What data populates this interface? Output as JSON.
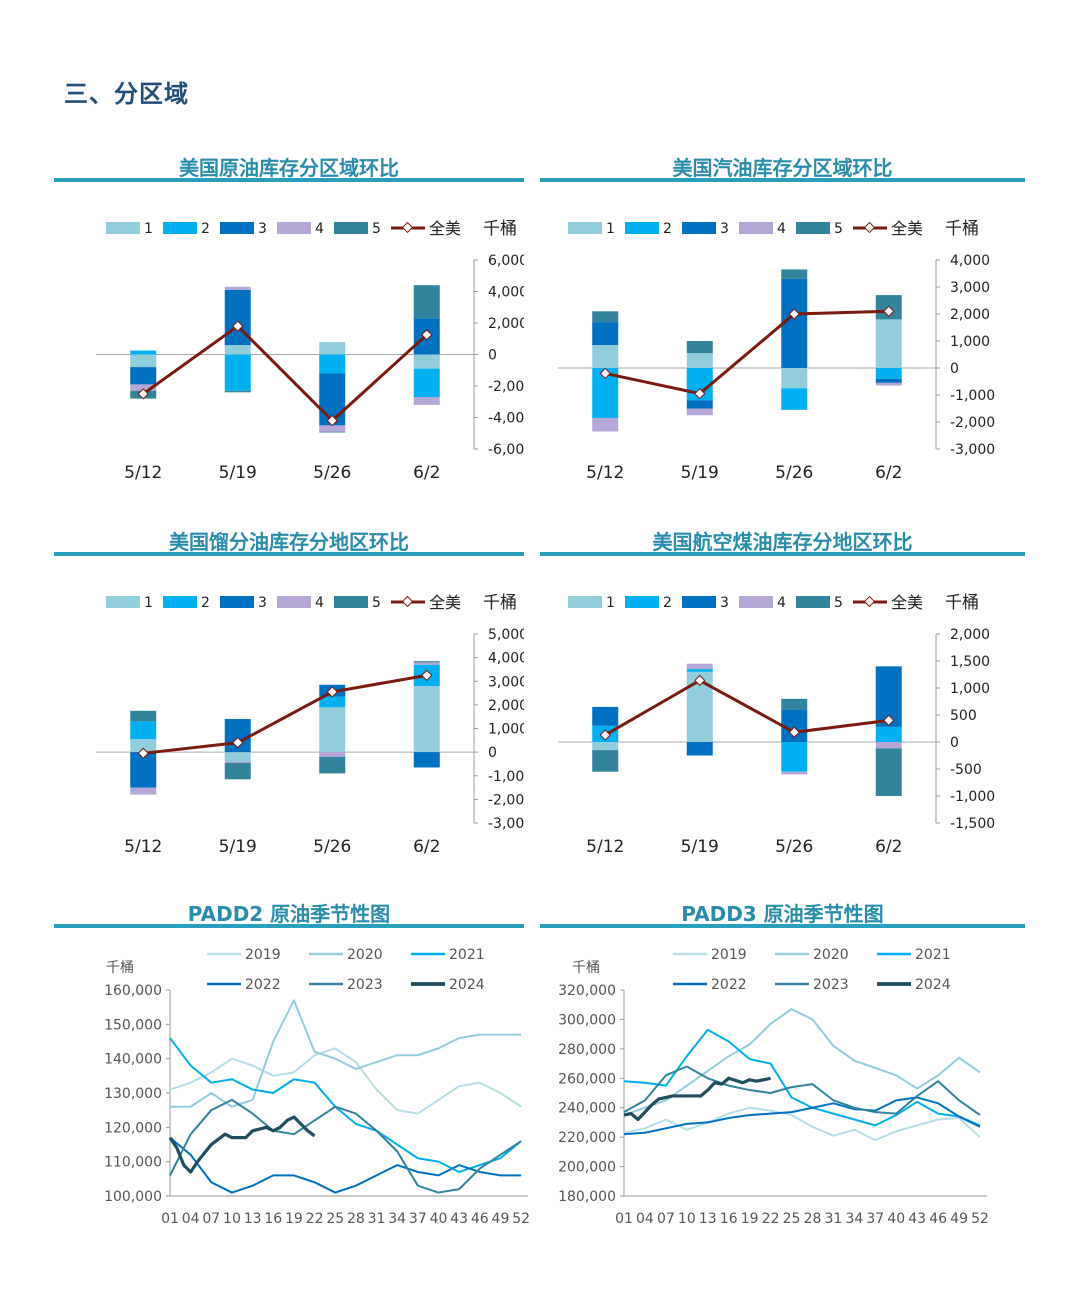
{
  "section": {
    "title": "三、分区域"
  },
  "colors": {
    "region_1": "#92cddc",
    "region_2": "#00b0f0",
    "region_3": "#0070c0",
    "region_4": "#b4a7d6",
    "region_5": "#31849b",
    "total_line": "#7b1a0e",
    "title": "#2a8cab",
    "rule": "#2a9fbc",
    "y2019": "#b7dde8",
    "y2020": "#92cddc",
    "y2021": "#00b0f0",
    "y2022": "#0070c0",
    "y2023": "#31849b",
    "y2024": "#1f4e5e"
  },
  "chart_data": [
    {
      "id": "crude",
      "type": "bar",
      "stacked": true,
      "title": "美国原油库存分区域环比",
      "unit": "千桶",
      "categories": [
        "5/12",
        "5/19",
        "5/26",
        "6/2"
      ],
      "ylim": [
        -6000,
        6000
      ],
      "yticks": [
        "6,000",
        "4,000",
        "2,000",
        "0",
        "-2,000",
        "-4,000",
        "-6,000"
      ],
      "ytick_values": [
        6000,
        4000,
        2000,
        0,
        -2000,
        -4000,
        -6000
      ],
      "series": [
        {
          "name": "1",
          "values": [
            -800,
            600,
            800,
            -900
          ]
        },
        {
          "name": "2",
          "values": [
            250,
            -2300,
            -1200,
            -1800
          ]
        },
        {
          "name": "3",
          "values": [
            -1100,
            3500,
            -3300,
            2300
          ]
        },
        {
          "name": "4",
          "values": [
            -400,
            200,
            -400,
            -500
          ]
        },
        {
          "name": "5",
          "values": [
            -500,
            -100,
            -50,
            2100
          ]
        }
      ],
      "line": {
        "name": "全美",
        "values": [
          -2500,
          1800,
          -4200,
          1250
        ]
      },
      "legend": "top"
    },
    {
      "id": "gasoline",
      "type": "bar",
      "stacked": true,
      "title": "美国汽油库存分区域环比",
      "unit": "千桶",
      "categories": [
        "5/12",
        "5/19",
        "5/26",
        "6/2"
      ],
      "ylim": [
        -3000,
        4000
      ],
      "yticks": [
        "4,000",
        "3,000",
        "2,000",
        "1,000",
        "0",
        "-1,000",
        "-2,000",
        "-3,000"
      ],
      "ytick_values": [
        4000,
        3000,
        2000,
        1000,
        0,
        -1000,
        -2000,
        -3000
      ],
      "series": [
        {
          "name": "1",
          "values": [
            850,
            550,
            -750,
            1800
          ]
        },
        {
          "name": "2",
          "values": [
            -1850,
            -1200,
            -800,
            -400
          ]
        },
        {
          "name": "3",
          "values": [
            850,
            -300,
            3300,
            -150
          ]
        },
        {
          "name": "4",
          "values": [
            -500,
            -250,
            0,
            -100
          ]
        },
        {
          "name": "5",
          "values": [
            400,
            450,
            350,
            900
          ]
        }
      ],
      "line": {
        "name": "全美",
        "values": [
          -200,
          -950,
          2000,
          2100
        ]
      },
      "legend": "top"
    },
    {
      "id": "distillate",
      "type": "bar",
      "stacked": true,
      "title": "美国馏分油库存分地区环比",
      "unit": "千桶",
      "categories": [
        "5/12",
        "5/19",
        "5/26",
        "6/2"
      ],
      "ylim": [
        -3000,
        5000
      ],
      "yticks": [
        "5,000",
        "4,000",
        "3,000",
        "2,000",
        "1,000",
        "0",
        "-1,000",
        "-2,000",
        "-3,000"
      ],
      "ytick_values": [
        5000,
        4000,
        3000,
        2000,
        1000,
        0,
        -1000,
        -2000,
        -3000
      ],
      "series": [
        {
          "name": "1",
          "values": [
            550,
            -400,
            1900,
            2800
          ]
        },
        {
          "name": "2",
          "values": [
            750,
            0,
            450,
            900
          ]
        },
        {
          "name": "3",
          "values": [
            -1500,
            1400,
            500,
            -650
          ]
        },
        {
          "name": "4",
          "values": [
            -300,
            -50,
            -200,
            100
          ]
        },
        {
          "name": "5",
          "values": [
            450,
            -700,
            -700,
            50
          ]
        }
      ],
      "line": {
        "name": "全美",
        "values": [
          -50,
          400,
          2550,
          3250
        ]
      },
      "legend": "top"
    },
    {
      "id": "jetfuel",
      "type": "bar",
      "stacked": true,
      "title": "美国航空煤油库存分地区环比",
      "unit": "千桶",
      "categories": [
        "5/12",
        "5/19",
        "5/26",
        "6/2"
      ],
      "ylim": [
        -1500,
        2000
      ],
      "yticks": [
        "2,000",
        "1,500",
        "1,000",
        "500",
        "0",
        "-500",
        "-1,000",
        "-1,500"
      ],
      "ytick_values": [
        2000,
        1500,
        1000,
        500,
        0,
        -500,
        -1000,
        -1500
      ],
      "series": [
        {
          "name": "1",
          "values": [
            -150,
            1300,
            0,
            0
          ]
        },
        {
          "name": "2",
          "values": [
            300,
            50,
            -550,
            280
          ]
        },
        {
          "name": "3",
          "values": [
            350,
            -250,
            600,
            1120
          ]
        },
        {
          "name": "4",
          "values": [
            0,
            100,
            -50,
            -120
          ]
        },
        {
          "name": "5",
          "values": [
            -400,
            0,
            200,
            -880
          ]
        }
      ],
      "line": {
        "name": "全美",
        "values": [
          130,
          1140,
          180,
          400
        ]
      },
      "legend": "top"
    },
    {
      "id": "padd2",
      "type": "line",
      "title": "PADD2 原油季节性图",
      "unit": "千桶",
      "xticks": [
        "01",
        "04",
        "07",
        "10",
        "13",
        "16",
        "19",
        "22",
        "25",
        "28",
        "31",
        "34",
        "37",
        "40",
        "43",
        "46",
        "49",
        "52"
      ],
      "ylim": [
        100000,
        160000
      ],
      "yticks": [
        "160,000",
        "150,000",
        "140,000",
        "130,000",
        "120,000",
        "110,000",
        "100,000"
      ],
      "ytick_values": [
        160000,
        150000,
        140000,
        130000,
        120000,
        110000,
        100000
      ],
      "series": [
        {
          "name": "2019",
          "x": [
            1,
            4,
            7,
            10,
            13,
            16,
            19,
            22,
            25,
            28,
            31,
            34,
            37,
            40,
            43,
            46,
            49,
            52
          ],
          "values": [
            131000,
            133000,
            136000,
            140000,
            138000,
            135000,
            136000,
            141000,
            143000,
            139000,
            131000,
            125000,
            124000,
            128000,
            132000,
            133000,
            130000,
            126000
          ]
        },
        {
          "name": "2020",
          "x": [
            1,
            4,
            7,
            10,
            13,
            16,
            19,
            22,
            25,
            28,
            31,
            34,
            37,
            40,
            43,
            46,
            49,
            52
          ],
          "values": [
            126000,
            126000,
            130000,
            126000,
            128000,
            145000,
            157000,
            142000,
            140000,
            137000,
            139000,
            141000,
            141000,
            143000,
            146000,
            147000,
            147000,
            147000
          ]
        },
        {
          "name": "2021",
          "x": [
            1,
            4,
            7,
            10,
            13,
            16,
            19,
            22,
            25,
            28,
            31,
            34,
            37,
            40,
            43,
            46,
            49,
            52
          ],
          "values": [
            146000,
            138000,
            133000,
            134000,
            131000,
            130000,
            134000,
            133000,
            126000,
            121000,
            119000,
            115000,
            111000,
            110000,
            107000,
            109000,
            111000,
            116000
          ]
        },
        {
          "name": "2022",
          "x": [
            1,
            4,
            7,
            10,
            13,
            16,
            19,
            22,
            25,
            28,
            31,
            34,
            37,
            40,
            43,
            46,
            49,
            52
          ],
          "values": [
            117000,
            112000,
            104000,
            101000,
            103000,
            106000,
            106000,
            104000,
            101000,
            103000,
            106000,
            109000,
            107000,
            106000,
            109000,
            107000,
            106000,
            106000
          ]
        },
        {
          "name": "2023",
          "x": [
            1,
            4,
            7,
            10,
            13,
            16,
            19,
            22,
            25,
            28,
            31,
            34,
            37,
            40,
            43,
            46,
            49,
            52
          ],
          "values": [
            106000,
            118000,
            125000,
            128000,
            124000,
            119000,
            118000,
            122000,
            126000,
            124000,
            119000,
            113000,
            103000,
            101000,
            102000,
            108000,
            112000,
            116000
          ]
        },
        {
          "name": "2024",
          "x": [
            1,
            2,
            3,
            4,
            5,
            7,
            9,
            10,
            12,
            13,
            15,
            16,
            17,
            18,
            19,
            20,
            21,
            22
          ],
          "values": [
            117000,
            114000,
            109000,
            107000,
            110000,
            115000,
            118000,
            117000,
            117000,
            119000,
            120000,
            119000,
            120000,
            122000,
            123000,
            121000,
            119000,
            117500
          ]
        }
      ],
      "legend": "top"
    },
    {
      "id": "padd3",
      "type": "line",
      "title": "PADD3 原油季节性图",
      "unit": "千桶",
      "xticks": [
        "01",
        "04",
        "07",
        "10",
        "13",
        "16",
        "19",
        "22",
        "25",
        "28",
        "31",
        "34",
        "37",
        "40",
        "43",
        "46",
        "49",
        "52"
      ],
      "ylim": [
        180000,
        320000
      ],
      "yticks": [
        "320,000",
        "300,000",
        "280,000",
        "260,000",
        "240,000",
        "220,000",
        "200,000",
        "180,000"
      ],
      "ytick_values": [
        320000,
        300000,
        280000,
        260000,
        240000,
        220000,
        200000,
        180000
      ],
      "series": [
        {
          "name": "2019",
          "x": [
            1,
            4,
            7,
            10,
            13,
            16,
            19,
            22,
            25,
            28,
            31,
            34,
            37,
            40,
            43,
            46,
            49,
            52
          ],
          "values": [
            223000,
            226000,
            232000,
            225000,
            230000,
            236000,
            240000,
            238000,
            235000,
            227000,
            221000,
            225000,
            218000,
            224000,
            228000,
            232000,
            233000,
            220000
          ]
        },
        {
          "name": "2020",
          "x": [
            1,
            4,
            7,
            10,
            13,
            16,
            19,
            22,
            25,
            28,
            31,
            34,
            37,
            40,
            43,
            46,
            49,
            52
          ],
          "values": [
            235000,
            240000,
            245000,
            255000,
            265000,
            275000,
            283000,
            297000,
            307000,
            300000,
            282000,
            272000,
            267000,
            262000,
            253000,
            262000,
            274000,
            264000
          ]
        },
        {
          "name": "2021",
          "x": [
            1,
            4,
            7,
            10,
            13,
            16,
            19,
            22,
            25,
            28,
            31,
            34,
            37,
            40,
            43,
            46,
            49,
            52
          ],
          "values": [
            258000,
            257000,
            255000,
            275000,
            293000,
            285000,
            273000,
            270000,
            247000,
            240000,
            236000,
            232000,
            228000,
            235000,
            244000,
            236000,
            234000,
            228000
          ]
        },
        {
          "name": "2022",
          "x": [
            1,
            4,
            7,
            10,
            13,
            16,
            19,
            22,
            25,
            28,
            31,
            34,
            37,
            40,
            43,
            46,
            49,
            52
          ],
          "values": [
            222000,
            223000,
            226000,
            229000,
            230000,
            233000,
            235000,
            236000,
            237000,
            240000,
            243000,
            239000,
            238000,
            245000,
            247000,
            243000,
            234000,
            227000
          ]
        },
        {
          "name": "2023",
          "x": [
            1,
            4,
            7,
            10,
            13,
            16,
            19,
            22,
            25,
            28,
            31,
            34,
            37,
            40,
            43,
            46,
            49,
            52
          ],
          "values": [
            237000,
            245000,
            262000,
            268000,
            260000,
            255000,
            252000,
            250000,
            254000,
            256000,
            245000,
            240000,
            237000,
            236000,
            248000,
            258000,
            245000,
            235000
          ]
        },
        {
          "name": "2024",
          "x": [
            1,
            2,
            3,
            4,
            5,
            6,
            8,
            10,
            12,
            13,
            14,
            15,
            16,
            18,
            19,
            20,
            22
          ],
          "values": [
            235000,
            236000,
            232000,
            237000,
            242000,
            246000,
            248000,
            248000,
            248000,
            252000,
            257000,
            256000,
            260000,
            257000,
            259000,
            258000,
            260000
          ]
        }
      ],
      "legend": "top"
    }
  ]
}
